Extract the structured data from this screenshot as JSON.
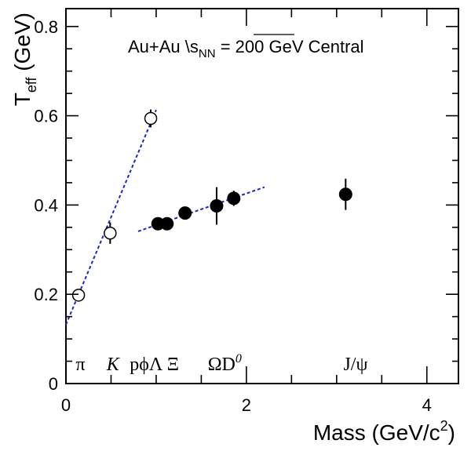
{
  "chart_data": {
    "type": "scatter",
    "annotation": {
      "main": "Au+Au ",
      "sqrt_symbol": "\\",
      "s": "s",
      "sub": "NN",
      "rest": " = 200 GeV Central"
    },
    "xlabel": "Mass (GeV/c",
    "xlabel_sup": "2",
    "xlabel_close": ")",
    "ylabel_main": "T",
    "ylabel_sub": "eff",
    "ylabel_unit": " (GeV)",
    "xlim": [
      0,
      4.35
    ],
    "ylim": [
      0,
      0.84
    ],
    "x_ticks": [
      {
        "value": 0,
        "label": "0"
      },
      {
        "value": 2,
        "label": "2"
      },
      {
        "value": 4,
        "label": "4"
      }
    ],
    "y_ticks": [
      {
        "value": 0,
        "label": "0"
      },
      {
        "value": 0.2,
        "label": "0.2"
      },
      {
        "value": 0.4,
        "label": "0.4"
      },
      {
        "value": 0.6,
        "label": "0.6"
      },
      {
        "value": 0.8,
        "label": "0.8"
      }
    ],
    "particle_labels": [
      {
        "x": 0.16,
        "label": "π",
        "italic": false
      },
      {
        "x": 0.52,
        "label": "K",
        "italic": true
      },
      {
        "x": 0.98,
        "label": "pϕΛ Ξ",
        "italic": false
      },
      {
        "x": 1.76,
        "label": "ΩD",
        "sup": "0",
        "italic": false
      },
      {
        "x": 3.21,
        "label": "J/ψ",
        "italic": false
      }
    ],
    "series": [
      {
        "marker": "open-circle",
        "points": [
          {
            "x": 0.14,
            "y": 0.198,
            "err": 0.005
          },
          {
            "x": 0.49,
            "y": 0.337,
            "err": 0.024
          },
          {
            "x": 0.94,
            "y": 0.594,
            "err": 0.02
          }
        ]
      },
      {
        "marker": "filled-circle",
        "points": [
          {
            "x": 1.02,
            "y": 0.358,
            "err": 0.01
          },
          {
            "x": 1.12,
            "y": 0.358,
            "err": 0.008
          },
          {
            "x": 1.32,
            "y": 0.382,
            "err": 0.01
          },
          {
            "x": 1.67,
            "y": 0.398,
            "err": 0.042
          },
          {
            "x": 1.86,
            "y": 0.415,
            "err": 0.017
          },
          {
            "x": 3.1,
            "y": 0.424,
            "err": 0.035
          }
        ]
      }
    ],
    "fit_lines": [
      {
        "x1": 0.0,
        "y1": 0.132,
        "x2": 1.0,
        "y2": 0.613,
        "color": "#1d24cc"
      },
      {
        "x1": 0.8,
        "y1": 0.341,
        "x2": 2.2,
        "y2": 0.44,
        "color": "#1d24cc"
      }
    ],
    "colors": {
      "axes": "#000000",
      "marker": "#000000",
      "fit": "#1d24cc"
    }
  }
}
